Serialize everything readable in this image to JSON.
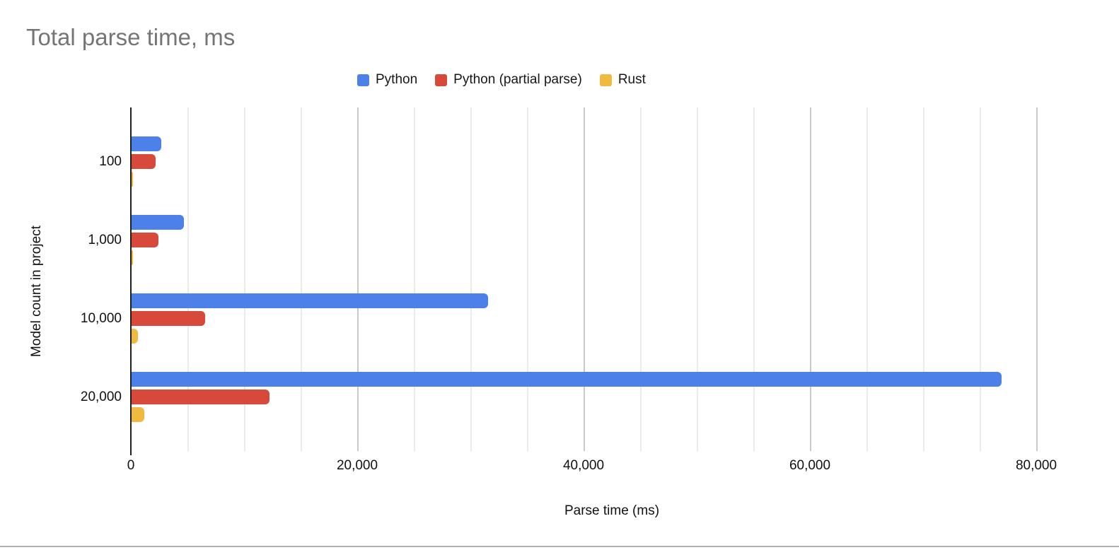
{
  "page": {
    "title_color": "#757575"
  },
  "chart_data": {
    "type": "bar",
    "orientation": "horizontal",
    "title": "Total parse time, ms",
    "categories": [
      "100",
      "1,000",
      "10,000",
      "20,000"
    ],
    "series": [
      {
        "name": "Python",
        "color": "#4D81E9",
        "values": [
          2600,
          4600,
          31500,
          76900
        ]
      },
      {
        "name": "Python (partial parse)",
        "color": "#D6493B",
        "values": [
          2100,
          2400,
          6500,
          12200
        ]
      },
      {
        "name": "Rust",
        "color": "#F0BA40",
        "values": [
          130,
          150,
          560,
          1100
        ]
      }
    ],
    "xlabel": "Parse time (ms)",
    "ylabel": "Model count in project",
    "xlim": [
      0,
      85000
    ],
    "x_major_ticks": [
      0,
      20000,
      40000,
      60000,
      80000
    ],
    "x_tick_labels": [
      "0",
      "20,000",
      "40,000",
      "60,000",
      "80,000"
    ],
    "x_minor_step": 5000,
    "grid": true,
    "legend_position": "top"
  }
}
